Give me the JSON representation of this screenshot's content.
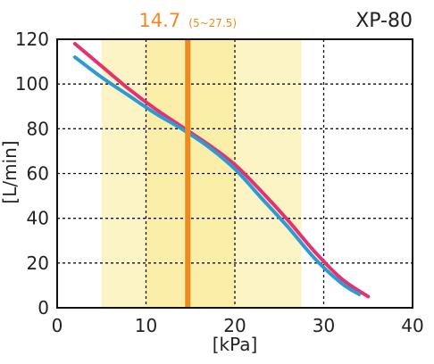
{
  "chart_data": {
    "type": "line",
    "model_label": "XP-80",
    "xlabel": "[kPa]",
    "ylabel": "[L/min]",
    "xlim": [
      0,
      40
    ],
    "ylim": [
      0,
      120
    ],
    "xticks": [
      0,
      10,
      20,
      30,
      40
    ],
    "yticks": [
      0,
      20,
      40,
      60,
      80,
      100,
      120
    ],
    "grid": true,
    "grid_style": "dashed",
    "operating_point": {
      "value": 14.7,
      "value_label": "14.7",
      "range_label": "(5~27.5)",
      "range": [
        5,
        27.5
      ],
      "color": "#f08a1c",
      "band_color": "#fdf4c6",
      "inner_band": [
        10,
        20
      ],
      "inner_band_color": "#fbeea8"
    },
    "series": [
      {
        "color": "#e5326e",
        "x": [
          2,
          5,
          8,
          11,
          14,
          17,
          20,
          23,
          26,
          29,
          32,
          35
        ],
        "y": [
          118,
          108,
          98,
          89,
          81,
          73,
          64,
          52,
          39,
          25,
          13,
          5
        ]
      },
      {
        "color": "#2b9bd8",
        "x": [
          2,
          5,
          8,
          11,
          14,
          17,
          20,
          23,
          26,
          29,
          32,
          34
        ],
        "y": [
          112,
          103,
          95,
          87,
          80,
          72,
          62,
          49,
          36,
          22,
          11,
          6
        ]
      }
    ]
  }
}
